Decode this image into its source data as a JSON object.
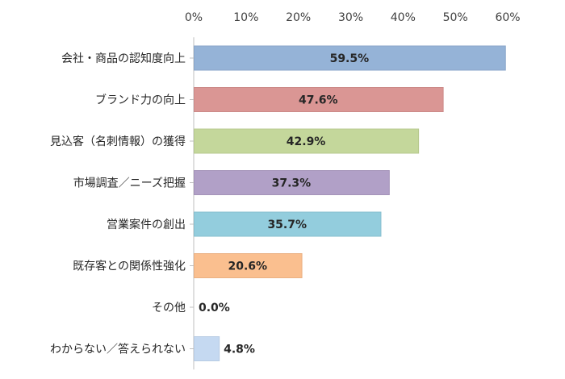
{
  "chart_data": {
    "type": "bar",
    "orientation": "horizontal",
    "categories": [
      "会社・商品の認知度向上",
      "ブランド力の向上",
      "見込客（名刺情報）の獲得",
      "市場調査／ニーズ把握",
      "営業案件の創出",
      "既存客との関係性強化",
      "その他",
      "わからない／答えられない"
    ],
    "values": [
      59.5,
      47.6,
      42.9,
      37.3,
      35.7,
      20.6,
      0.0,
      4.8
    ],
    "value_labels": [
      "59.5%",
      "47.6%",
      "42.9%",
      "37.3%",
      "35.7%",
      "20.6%",
      "0.0%",
      "4.8%"
    ],
    "bar_colors": [
      "#95b3d7",
      "#da9694",
      "#c4d79b",
      "#b1a0c7",
      "#93cddd",
      "#fabf8f",
      "#a6a6a6",
      "#c5d9f1"
    ],
    "bar_outline_colors": [
      "#8aa6c9",
      "#cc8a88",
      "#b7c98f",
      "#a493b9",
      "#87bfcf",
      "#eab183",
      "#999999",
      "#b7cbe3"
    ],
    "x_ticks": [
      "0%",
      "10%",
      "20%",
      "30%",
      "40%",
      "50%",
      "60%"
    ],
    "xlim": [
      0,
      60
    ],
    "axis_position": "top",
    "grid": false,
    "legend": "none",
    "title": "",
    "xlabel": "",
    "ylabel": ""
  }
}
